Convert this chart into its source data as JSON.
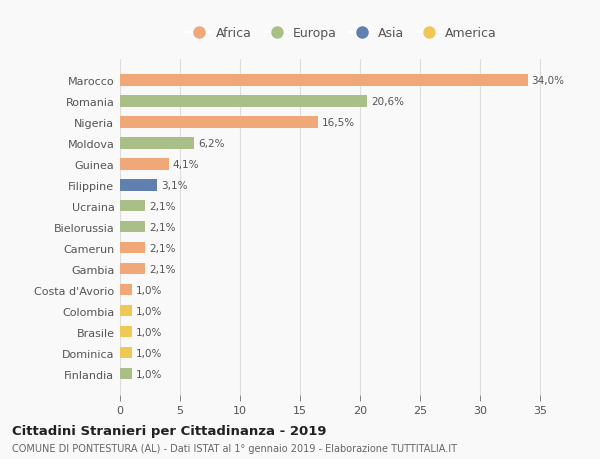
{
  "categories": [
    "Marocco",
    "Romania",
    "Nigeria",
    "Moldova",
    "Guinea",
    "Filippine",
    "Ucraina",
    "Bielorussia",
    "Camerun",
    "Gambia",
    "Costa d'Avorio",
    "Colombia",
    "Brasile",
    "Dominica",
    "Finlandia"
  ],
  "values": [
    34.0,
    20.6,
    16.5,
    6.2,
    4.1,
    3.1,
    2.1,
    2.1,
    2.1,
    2.1,
    1.0,
    1.0,
    1.0,
    1.0,
    1.0
  ],
  "labels": [
    "34,0%",
    "20,6%",
    "16,5%",
    "6,2%",
    "4,1%",
    "3,1%",
    "2,1%",
    "2,1%",
    "2,1%",
    "2,1%",
    "1,0%",
    "1,0%",
    "1,0%",
    "1,0%",
    "1,0%"
  ],
  "continents": [
    "Africa",
    "Europa",
    "Africa",
    "Europa",
    "Africa",
    "Asia",
    "Europa",
    "Europa",
    "Africa",
    "Africa",
    "Africa",
    "America",
    "America",
    "America",
    "Europa"
  ],
  "colors": {
    "Africa": "#F0A878",
    "Europa": "#AABF88",
    "Asia": "#6080B0",
    "America": "#F0C858"
  },
  "legend_order": [
    "Africa",
    "Europa",
    "Asia",
    "America"
  ],
  "title": "Cittadini Stranieri per Cittadinanza - 2019",
  "subtitle": "COMUNE DI PONTESTURA (AL) - Dati ISTAT al 1° gennaio 2019 - Elaborazione TUTTITALIA.IT",
  "xlim": [
    0,
    37
  ],
  "xticks": [
    0,
    5,
    10,
    15,
    20,
    25,
    30,
    35
  ],
  "background_color": "#f9f9f9",
  "grid_color": "#dddddd"
}
